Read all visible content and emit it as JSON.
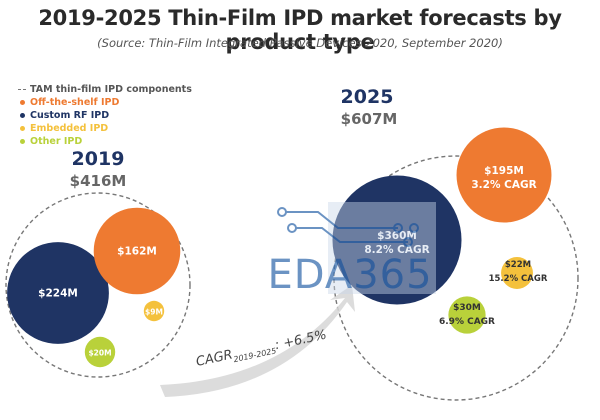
{
  "title": "2019-2025 Thin-Film IPD market forecasts by product type",
  "subtitle": "(Source: Thin-Film Integrated Passive Devices 2020, September 2020)",
  "colors": {
    "off_the_shelf": "#ee7a31",
    "custom_rf": "#1f3464",
    "embedded": "#f4c13c",
    "other": "#b9d13a",
    "tam_dash": "#777777"
  },
  "legend": {
    "tam_label": "TAM thin-film IPD components",
    "items": [
      {
        "label": "Off-the-shelf IPD",
        "color": "#ee7a31"
      },
      {
        "label": "Custom RF IPD",
        "color": "#1f3464"
      },
      {
        "label": "Embedded IPD",
        "color": "#f4c13c"
      },
      {
        "label": "Other IPD",
        "color": "#b9d13a"
      }
    ]
  },
  "cagr_text": "CAGR",
  "cagr_sub": "2019-2025",
  "cagr_value": ": +6.5%",
  "watermark_text": "EDA365",
  "chart_data": {
    "type": "bubble",
    "unit": "$M",
    "groups": [
      {
        "year": "2019",
        "total_label": "$416M",
        "total": 416,
        "segments": [
          {
            "category": "Custom RF IPD",
            "value": 224,
            "label": "$224M"
          },
          {
            "category": "Off-the-shelf IPD",
            "value": 162,
            "label": "$162M"
          },
          {
            "category": "Embedded IPD",
            "value": 9,
            "label": "$9M"
          },
          {
            "category": "Other IPD",
            "value": 20,
            "label": "$20M"
          }
        ]
      },
      {
        "year": "2025",
        "total_label": "$607M",
        "total": 607,
        "segments": [
          {
            "category": "Custom RF IPD",
            "value": 360,
            "label": "$360M",
            "cagr": "8.2% CAGR"
          },
          {
            "category": "Off-the-shelf IPD",
            "value": 195,
            "label": "$195M",
            "cagr": "3.2% CAGR"
          },
          {
            "category": "Embedded IPD",
            "value": 22,
            "label": "$22M",
            "cagr": "15.2% CAGR"
          },
          {
            "category": "Other IPD",
            "value": 30,
            "label": "$30M",
            "cagr": "6.9% CAGR"
          }
        ]
      }
    ],
    "cagr_overall": "+6.5%"
  }
}
